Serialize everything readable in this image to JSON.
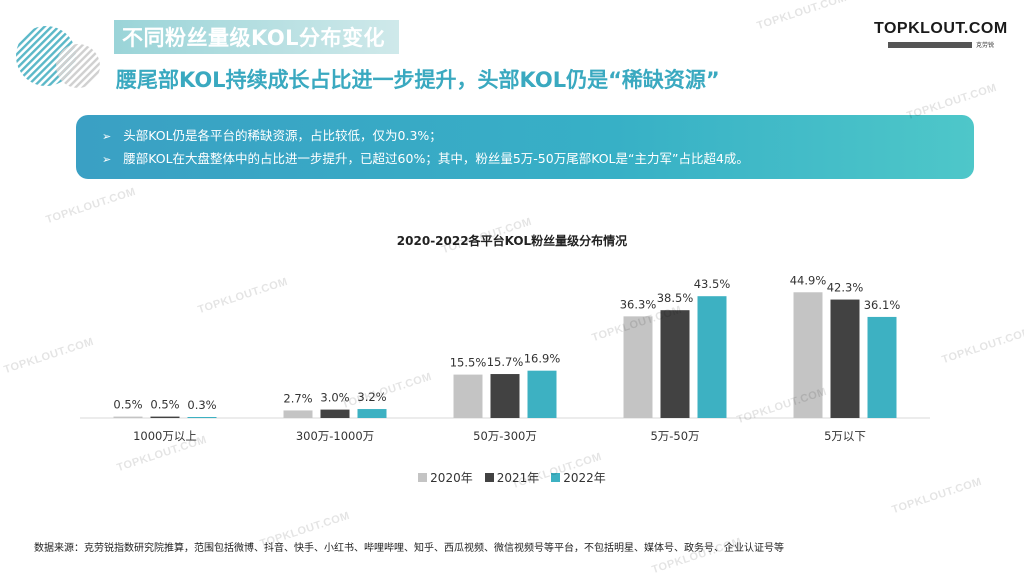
{
  "header": {
    "title": "不同粉丝量级KOL分布变化",
    "subtitle": "腰尾部KOL持续成长占比进一步提升，头部KOL仍是“稀缺资源”"
  },
  "brand": {
    "name": "TOPKLOUT.COM",
    "tagline": "克劳锐"
  },
  "info": {
    "lines": [
      "头部KOL仍是各平台的稀缺资源，占比较低，仅为0.3%；",
      "腰部KOL在大盘整体中的占比进一步提升，已超过60%；其中，粉丝量5万-50万尾部KOL是“主力军”占比超4成。"
    ]
  },
  "chart_data": {
    "type": "bar",
    "title": "2020-2022各平台KOL粉丝量级分布情况",
    "categories": [
      "1000万以上",
      "300万-1000万",
      "50万-300万",
      "5万-50万",
      "5万以下"
    ],
    "series": [
      {
        "name": "2020年",
        "values": [
          0.5,
          2.7,
          15.5,
          36.3,
          44.9
        ],
        "labels": [
          "0.5%",
          "2.7%",
          "15.5%",
          "36.3%",
          "44.9%"
        ],
        "color": "#c4c4c4"
      },
      {
        "name": "2021年",
        "values": [
          0.5,
          3.0,
          15.7,
          38.5,
          42.3
        ],
        "labels": [
          "0.5%",
          "3.0%",
          "15.7%",
          "38.5%",
          "42.3%"
        ],
        "color": "#424242"
      },
      {
        "name": "2022年",
        "values": [
          0.3,
          3.2,
          16.9,
          43.5,
          36.1
        ],
        "labels": [
          "0.3%",
          "3.2%",
          "16.9%",
          "43.5%",
          "36.1%"
        ],
        "color": "#3db1c2"
      }
    ],
    "ylim": [
      0,
      50
    ],
    "grid": false,
    "legend": "bottom"
  },
  "source": "数据来源：克劳锐指数研究院推算，范围包括微博、抖音、快手、小红书、哔哩哔哩、知乎、西瓜视频、微信视频号等平台，不包括明星、媒体号、政务号、企业认证号等",
  "watermark": "TOPKLOUT.COM"
}
